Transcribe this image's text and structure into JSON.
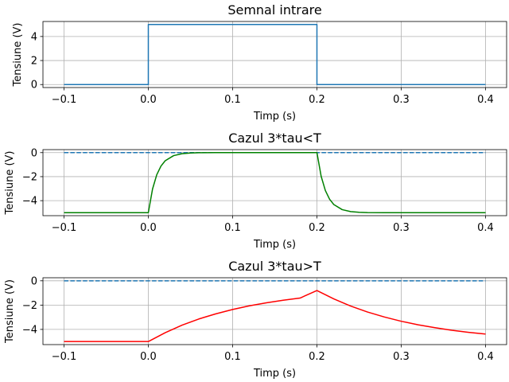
{
  "chart_data": [
    {
      "type": "line",
      "title": "Semnal intrare",
      "xlabel": "Timp (s)",
      "ylabel": "Tensiune (V)",
      "xlim": [
        -0.125,
        0.425
      ],
      "ylim": [
        -0.25,
        5.25
      ],
      "xticks": [
        -0.1,
        0.0,
        0.1,
        0.2,
        0.3,
        0.4
      ],
      "xtick_labels": [
        "−0.1",
        "0.0",
        "0.1",
        "0.2",
        "0.3",
        "0.4"
      ],
      "yticks": [
        0,
        2,
        4
      ],
      "ytick_labels": [
        "0",
        "2",
        "4"
      ],
      "grid": true,
      "series": [
        {
          "color": "#1f77b4",
          "style": "solid",
          "x": [
            -0.1,
            0.0,
            0.0,
            0.2,
            0.2,
            0.4
          ],
          "y": [
            0,
            0,
            5,
            5,
            0,
            0
          ]
        }
      ]
    },
    {
      "type": "line",
      "title": "Cazul 3*tau<T",
      "xlabel": "Timp (s)",
      "ylabel": "Tensiune (V)",
      "xlim": [
        -0.125,
        0.425
      ],
      "ylim": [
        -5.25,
        0.25
      ],
      "xticks": [
        -0.1,
        0.0,
        0.1,
        0.2,
        0.3,
        0.4
      ],
      "xtick_labels": [
        "−0.1",
        "0.0",
        "0.1",
        "0.2",
        "0.3",
        "0.4"
      ],
      "yticks": [
        -4,
        -2,
        0
      ],
      "ytick_labels": [
        "−4",
        "−2",
        "0"
      ],
      "grid": true,
      "series": [
        {
          "color": "#1f77b4",
          "style": "dashed",
          "x": [
            -0.1,
            0.4
          ],
          "y": [
            0,
            0
          ]
        },
        {
          "color": "#008000",
          "style": "solid",
          "x": [
            -0.1,
            0.0,
            0.005,
            0.01,
            0.015,
            0.02,
            0.03,
            0.04,
            0.05,
            0.06,
            0.08,
            0.1,
            0.15,
            0.2,
            0.205,
            0.21,
            0.215,
            0.22,
            0.23,
            0.24,
            0.25,
            0.26,
            0.28,
            0.3,
            0.35,
            0.4
          ],
          "y": [
            -5,
            -5,
            -3.03,
            -1.84,
            -1.12,
            -0.68,
            -0.25,
            -0.09,
            -0.03,
            -0.01,
            0,
            0,
            0,
            0,
            -1.97,
            -3.16,
            -3.88,
            -4.32,
            -4.75,
            -4.91,
            -4.97,
            -4.99,
            -5,
            -5,
            -5,
            -5
          ]
        }
      ]
    },
    {
      "type": "line",
      "title": "Cazul 3*tau>T",
      "xlabel": "Timp (s)",
      "ylabel": "Tensiune (V)",
      "xlim": [
        -0.125,
        0.425
      ],
      "ylim": [
        -5.25,
        0.25
      ],
      "xticks": [
        -0.1,
        0.0,
        0.1,
        0.2,
        0.3,
        0.4
      ],
      "xtick_labels": [
        "−0.1",
        "0.0",
        "0.1",
        "0.2",
        "0.3",
        "0.4"
      ],
      "yticks": [
        -4,
        -2,
        0
      ],
      "ytick_labels": [
        "−4",
        "−2",
        "0"
      ],
      "grid": true,
      "series": [
        {
          "color": "#1f77b4",
          "style": "dashed",
          "x": [
            -0.1,
            0.4
          ],
          "y": [
            0,
            0
          ]
        },
        {
          "color": "#ff0000",
          "style": "solid",
          "x": [
            -0.1,
            0.0,
            0.02,
            0.04,
            0.06,
            0.08,
            0.1,
            0.12,
            0.14,
            0.16,
            0.18,
            0.2,
            0.22,
            0.24,
            0.26,
            0.28,
            0.3,
            0.32,
            0.34,
            0.36,
            0.38,
            0.4
          ],
          "y": [
            -5,
            -5,
            -4.27,
            -3.65,
            -3.14,
            -2.72,
            -2.36,
            -2.06,
            -1.81,
            -1.6,
            -1.42,
            -0.8,
            -1.49,
            -2.08,
            -2.57,
            -2.98,
            -3.33,
            -3.62,
            -3.86,
            -4.07,
            -4.24,
            -4.38
          ]
        }
      ]
    }
  ]
}
